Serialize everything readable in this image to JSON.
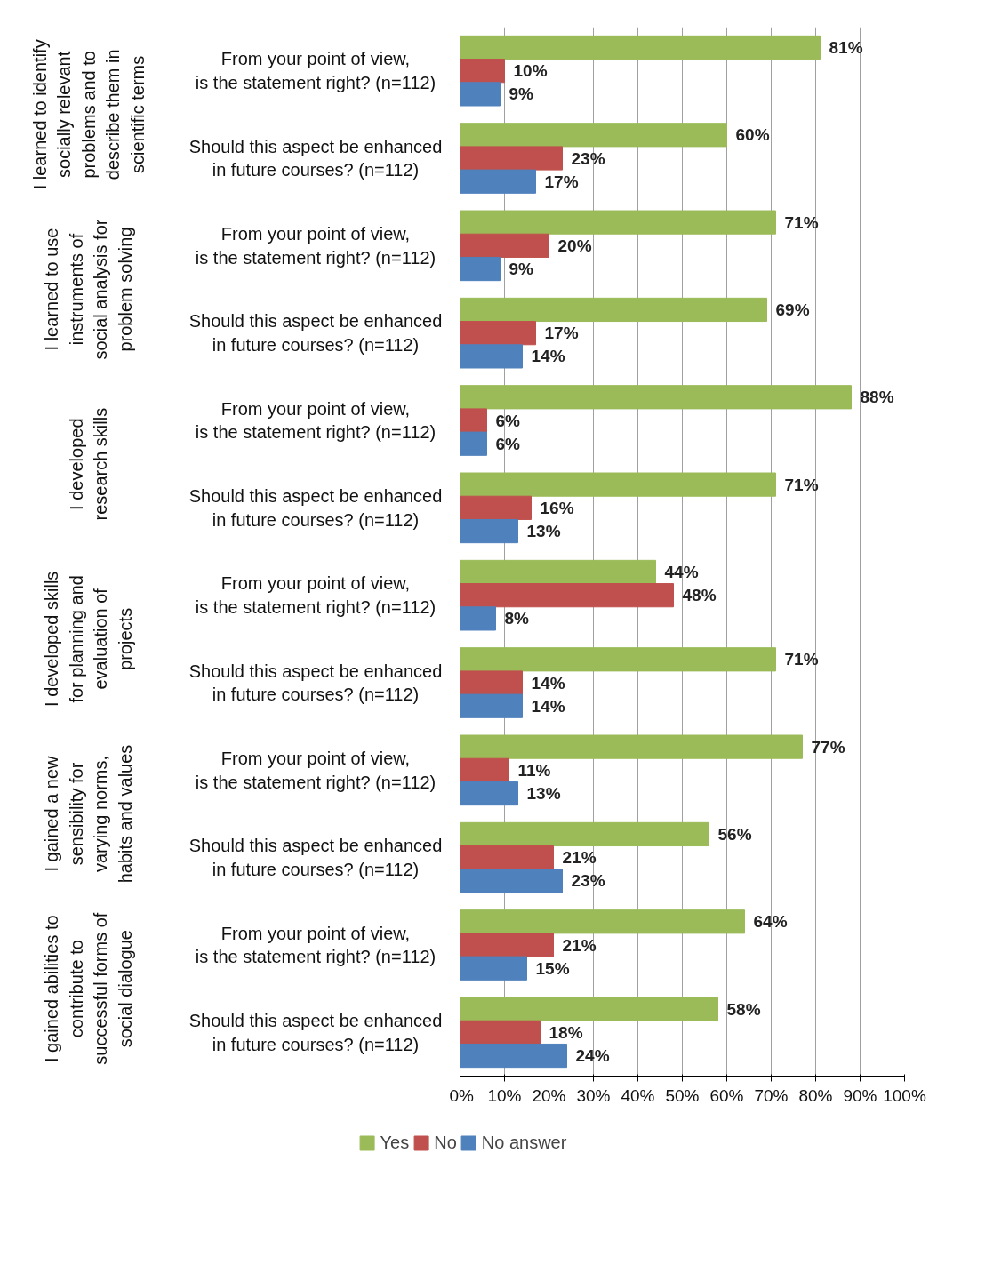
{
  "chart_data": {
    "type": "bar",
    "orientation": "horizontal",
    "categories": [
      "From your point of view,\nis the statement right? (n=112)",
      "Should this aspect be enhanced\nin future courses? (n=112)",
      "From your point of view,\nis the statement right? (n=112)",
      "Should this aspect be enhanced\nin future courses? (n=112)",
      "From your point of view,\nis the statement right? (n=112)",
      "Should this aspect be enhanced\nin future courses? (n=112)",
      "From your point of view,\nis the statement right? (n=112)",
      "Should this aspect be enhanced\nin future courses? (n=112)",
      "From your point of view,\nis the statement right? (n=112)",
      "Should this aspect be enhanced\nin future courses? (n=112)",
      "From your point of view,\nis the statement right? (n=112)",
      "Should this aspect be enhanced\nin future courses? (n=112)"
    ],
    "series": [
      {
        "name": "Yes",
        "color": "#9bbb59",
        "values": [
          81,
          60,
          71,
          69,
          88,
          71,
          44,
          71,
          77,
          56,
          64,
          58
        ],
        "value_labels": [
          "81%",
          "60%",
          "71%",
          "69%",
          "88%",
          "71%",
          "44%",
          "71%",
          "77%",
          "56%",
          "64%",
          "58%"
        ]
      },
      {
        "name": "No",
        "color": "#c0504d",
        "values": [
          10,
          23,
          20,
          17,
          6,
          16,
          48,
          14,
          11,
          21,
          21,
          18
        ],
        "value_labels": [
          "10%",
          "23%",
          "20%",
          "17%",
          "6%",
          "16%",
          "48%",
          "14%",
          "11%",
          "21%",
          "21%",
          "18%"
        ]
      },
      {
        "name": "No answer",
        "color": "#4f81bd",
        "values": [
          9,
          17,
          9,
          14,
          6,
          13,
          8,
          14,
          13,
          23,
          15,
          24
        ],
        "value_labels": [
          "9%",
          "17%",
          "9%",
          "14%",
          "6%",
          "13%",
          "8%",
          "14%",
          "13%",
          "23%",
          "15%",
          "24%"
        ]
      }
    ],
    "annotations": [
      "I learned to identify\nsocially relevant\nproblems and to\ndescribe them in\nscientific terms",
      "I learned to use\ninstruments of\nsocial analysis for\nproblem solving",
      "I developed\nresearch skills",
      "I developed skills\nfor planning and\nevaluation of\nprojects",
      "I gained a new\nsensibility for\nvarying norms,\nhabits and values",
      "I gained abilities to\ncontribute to\nsuccessful forms of\nsocial dialogue"
    ],
    "xlim": [
      0,
      100
    ],
    "xticks": [
      {
        "value": 0,
        "label": "0%"
      },
      {
        "value": 10,
        "label": "10%"
      },
      {
        "value": 20,
        "label": "20%"
      },
      {
        "value": 30,
        "label": "30%"
      },
      {
        "value": 40,
        "label": "40%"
      },
      {
        "value": 50,
        "label": "50%"
      },
      {
        "value": 60,
        "label": "60%"
      },
      {
        "value": 70,
        "label": "70%"
      },
      {
        "value": 80,
        "label": "80%"
      },
      {
        "value": 90,
        "label": "90%"
      },
      {
        "value": 100,
        "label": "100%"
      }
    ],
    "grid": "x",
    "legend": "bottom",
    "tick_labels": "x"
  }
}
